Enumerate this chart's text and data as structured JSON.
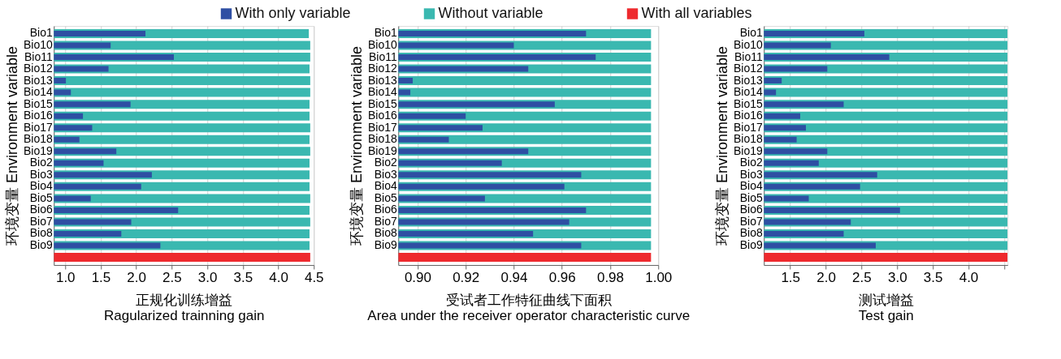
{
  "chart_data": [
    {
      "type": "bar",
      "orientation": "horizontal",
      "legend": "top",
      "grid": "x",
      "ylabel": "环境变量 Environment variable",
      "xlabel": "正规化训练增益\nRagularized trainning gain",
      "categories": [
        "Bio1",
        "Bio10",
        "Bio11",
        "Bio12",
        "Bio13",
        "Bio14",
        "Bio15",
        "Bio16",
        "Bio17",
        "Bio18",
        "Bio19",
        "Bio2",
        "Bio3",
        "Bio4",
        "Bio5",
        "Bio6",
        "Bio7",
        "Bio8",
        "Bio9",
        null
      ],
      "xlim": [
        0.84,
        4.5
      ],
      "xticks": [
        {
          "value": 1.0,
          "label": "1.0"
        },
        {
          "value": 1.5,
          "label": "1.5"
        },
        {
          "value": 2.0,
          "label": "2.0"
        },
        {
          "value": 2.5,
          "label": "2.5"
        },
        {
          "value": 3.0,
          "label": "3.0"
        },
        {
          "value": 3.5,
          "label": "3.5"
        },
        {
          "value": 4.0,
          "label": "4.0"
        },
        {
          "value": 4.5,
          "label": "4.5"
        }
      ],
      "series": [
        {
          "name": "With only variable",
          "color": "#2e4fa3",
          "values": [
            2.13,
            1.64,
            2.53,
            1.61,
            1.01,
            1.08,
            1.92,
            1.25,
            1.38,
            1.2,
            1.72,
            1.54,
            2.22,
            2.07,
            1.36,
            2.59,
            1.93,
            1.79,
            2.34,
            null
          ]
        },
        {
          "name": "Without variable",
          "color": "#3ab8b0",
          "values": [
            4.43,
            4.45,
            4.45,
            4.44,
            4.45,
            4.45,
            4.44,
            4.44,
            4.45,
            4.44,
            4.45,
            4.44,
            4.44,
            4.44,
            4.45,
            4.44,
            4.45,
            4.44,
            4.44,
            null
          ]
        },
        {
          "name": "With all variables",
          "color": "#ee2a2e",
          "values": [
            null,
            null,
            null,
            null,
            null,
            null,
            null,
            null,
            null,
            null,
            null,
            null,
            null,
            null,
            null,
            null,
            null,
            null,
            null,
            4.45
          ]
        }
      ]
    },
    {
      "type": "bar",
      "orientation": "horizontal",
      "grid": "x",
      "ylabel": "环境变量 Environment variable",
      "xlabel": "受试者工作特征曲线下面积\nArea under the receiver operator characteristic curve",
      "categories": [
        "Bio1",
        "Bio10",
        "Bio11",
        "Bio12",
        "Bio13",
        "Bio14",
        "Bio15",
        "Bio16",
        "Bio17",
        "Bio18",
        "Bio19",
        "Bio2",
        "Bio3",
        "Bio4",
        "Bio5",
        "Bio6",
        "Bio7",
        "Bio8",
        "Bio9",
        null
      ],
      "xlim": [
        0.892,
        1.0
      ],
      "xticks": [
        {
          "value": 0.9,
          "label": "0.90"
        },
        {
          "value": 0.92,
          "label": "0.92"
        },
        {
          "value": 0.94,
          "label": "0.94"
        },
        {
          "value": 0.96,
          "label": "0.96"
        },
        {
          "value": 0.98,
          "label": "0.98"
        },
        {
          "value": 1.0,
          "label": "1.00"
        }
      ],
      "series": [
        {
          "color": "#2e4fa3",
          "values": [
            0.97,
            0.94,
            0.974,
            0.946,
            0.898,
            0.897,
            0.957,
            0.92,
            0.927,
            0.913,
            0.946,
            0.935,
            0.968,
            0.961,
            0.928,
            0.97,
            0.963,
            0.948,
            0.968,
            null
          ]
        },
        {
          "color": "#3ab8b0",
          "values": [
            0.997,
            0.997,
            0.997,
            0.997,
            0.997,
            0.997,
            0.997,
            0.997,
            0.997,
            0.997,
            0.997,
            0.997,
            0.997,
            0.997,
            0.997,
            0.997,
            0.997,
            0.997,
            0.997,
            null
          ]
        },
        {
          "color": "#ee2a2e",
          "values": [
            null,
            null,
            null,
            null,
            null,
            null,
            null,
            null,
            null,
            null,
            null,
            null,
            null,
            null,
            null,
            null,
            null,
            null,
            null,
            0.997
          ]
        }
      ]
    },
    {
      "type": "bar",
      "orientation": "horizontal",
      "grid": "x",
      "ylabel": "环境变量 Environment variable",
      "xlabel": "测试增益\nTest gain",
      "categories": [
        "Bio1",
        "Bio10",
        "Bio11",
        "Bio12",
        "Bio13",
        "Bio14",
        "Bio15",
        "Bio16",
        "Bio17",
        "Bio18",
        "Bio19",
        "Bio2",
        "Bio3",
        "Bio4",
        "Bio5",
        "Bio6",
        "Bio7",
        "Bio8",
        "Bio9",
        null
      ],
      "xlim": [
        1.13,
        4.55
      ],
      "xticks": [
        {
          "value": 1.5,
          "label": "1.5"
        },
        {
          "value": 2.0,
          "label": "2.0"
        },
        {
          "value": 2.5,
          "label": "2.5"
        },
        {
          "value": 3.0,
          "label": "3.0"
        },
        {
          "value": 3.5,
          "label": "3.5"
        },
        {
          "value": 4.0,
          "label": "4.0"
        },
        {
          "value": 4.5,
          "label": null
        }
      ],
      "series": [
        {
          "color": "#2e4fa3",
          "values": [
            2.54,
            2.07,
            2.89,
            2.02,
            1.38,
            1.3,
            2.25,
            1.64,
            1.72,
            1.59,
            2.02,
            1.9,
            2.72,
            2.48,
            1.76,
            3.04,
            2.35,
            2.25,
            2.7,
            null
          ]
        },
        {
          "color": "#3ab8b0",
          "values": [
            4.55,
            4.55,
            4.55,
            4.55,
            4.55,
            4.55,
            4.55,
            4.55,
            4.55,
            4.55,
            4.55,
            4.55,
            4.55,
            4.55,
            4.55,
            4.55,
            4.55,
            4.55,
            4.55,
            null
          ]
        },
        {
          "color": "#ee2a2e",
          "values": [
            null,
            null,
            null,
            null,
            null,
            null,
            null,
            null,
            null,
            null,
            null,
            null,
            null,
            null,
            null,
            null,
            null,
            null,
            null,
            4.55
          ]
        }
      ]
    }
  ]
}
